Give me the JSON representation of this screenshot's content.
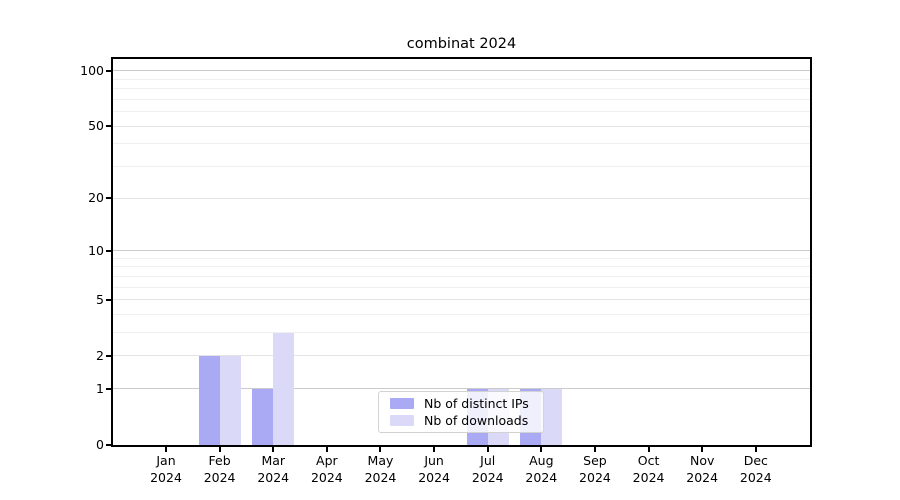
{
  "title": "combinat 2024",
  "legend": {
    "items": [
      {
        "label": "Nb of distinct IPs",
        "color": "#a9a9f4"
      },
      {
        "label": "Nb of downloads",
        "color": "#dadaf8"
      }
    ]
  },
  "chart_data": {
    "type": "bar",
    "title": "combinat 2024",
    "categories": [
      "Jan",
      "Feb",
      "Mar",
      "Apr",
      "May",
      "Jun",
      "Jul",
      "Aug",
      "Sep",
      "Oct",
      "Nov",
      "Dec"
    ],
    "year_label": "2024",
    "series": [
      {
        "name": "Nb of distinct IPs",
        "color": "#a9a9f4",
        "values": [
          0,
          2,
          1,
          0,
          0,
          0,
          1,
          1,
          0,
          0,
          0,
          0
        ]
      },
      {
        "name": "Nb of downloads",
        "color": "#dadaf8",
        "values": [
          0,
          2,
          3,
          0,
          0,
          0,
          1,
          1,
          0,
          0,
          0,
          0
        ]
      }
    ],
    "xlabel": "",
    "ylabel": "",
    "yscale": "log1p",
    "ylim": [
      0,
      116
    ],
    "yticks": [
      0,
      1,
      2,
      5,
      10,
      20,
      50,
      100
    ],
    "major_gridlines": [
      1,
      10,
      100
    ],
    "mid_gridlines": [
      2,
      5,
      20,
      50
    ],
    "minor_gridlines": [
      3,
      4,
      6,
      7,
      8,
      9,
      30,
      40,
      60,
      70,
      80,
      90
    ],
    "grid": "horizontal",
    "legend_position": "lower center",
    "colors": {
      "major_grid": "#cbcbcb",
      "mid_grid": "#e4e4e4",
      "minor_grid": "#efefef"
    }
  }
}
